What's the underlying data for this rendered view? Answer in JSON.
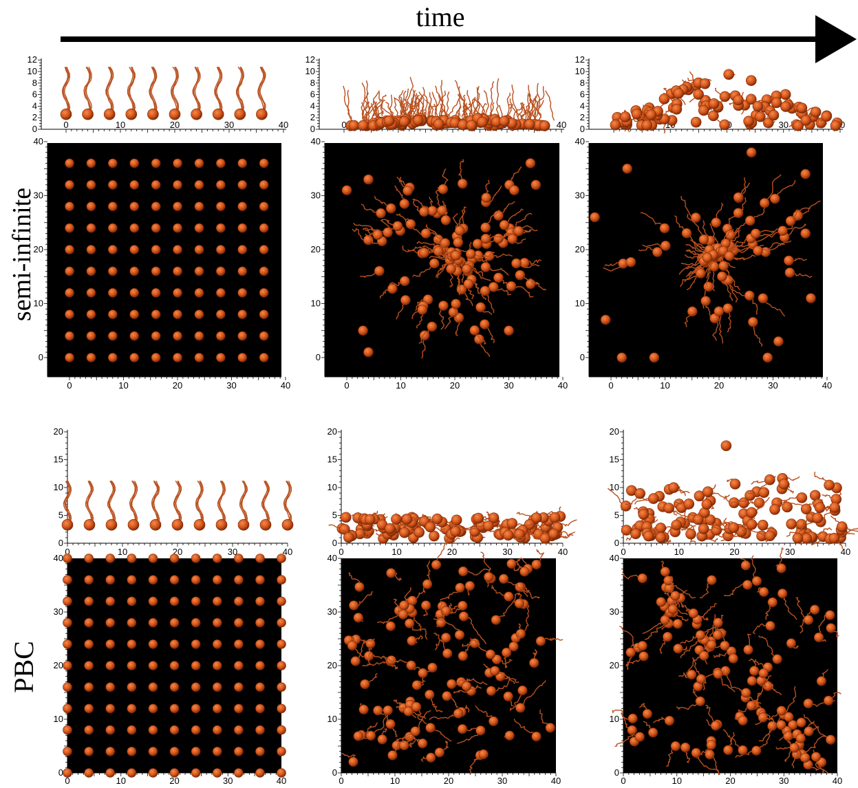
{
  "time_label": "time",
  "row_labels": {
    "top": "semi-infinite",
    "bottom": "PBC"
  },
  "colors": {
    "bead": "#d4541a",
    "bead_dark": "#7a2a06",
    "chain": "#b8501e",
    "panel_bg": "#000000"
  },
  "axes": {
    "side_semi": {
      "x_ticks": [
        "0",
        "10",
        "20",
        "30",
        "40"
      ],
      "y_ticks": [
        "0",
        "2",
        "4",
        "6",
        "8",
        "10",
        "12"
      ]
    },
    "side_pbc": {
      "x_ticks": [
        "0",
        "10",
        "20",
        "30",
        "40"
      ],
      "y_ticks": [
        "0",
        "5",
        "10",
        "15",
        "20"
      ]
    },
    "top_view": {
      "x_ticks": [
        "0",
        "10",
        "20",
        "30",
        "40"
      ],
      "y_ticks": [
        "0",
        "10",
        "20",
        "30",
        "40"
      ]
    }
  },
  "panels": [
    {
      "id": "semi-t0-side",
      "row": "semi-infinite",
      "stage": "initial",
      "view": "side"
    },
    {
      "id": "semi-t1-side",
      "row": "semi-infinite",
      "stage": "intermediate",
      "view": "side"
    },
    {
      "id": "semi-t2-side",
      "row": "semi-infinite",
      "stage": "late",
      "view": "side"
    },
    {
      "id": "semi-t0-top",
      "row": "semi-infinite",
      "stage": "initial",
      "view": "top"
    },
    {
      "id": "semi-t1-top",
      "row": "semi-infinite",
      "stage": "intermediate",
      "view": "top"
    },
    {
      "id": "semi-t2-top",
      "row": "semi-infinite",
      "stage": "late",
      "view": "top"
    },
    {
      "id": "pbc-t0-side",
      "row": "PBC",
      "stage": "initial",
      "view": "side"
    },
    {
      "id": "pbc-t1-side",
      "row": "PBC",
      "stage": "intermediate",
      "view": "side"
    },
    {
      "id": "pbc-t2-side",
      "row": "PBC",
      "stage": "late",
      "view": "side"
    },
    {
      "id": "pbc-t0-top",
      "row": "PBC",
      "stage": "initial",
      "view": "top"
    },
    {
      "id": "pbc-t1-top",
      "row": "PBC",
      "stage": "intermediate",
      "view": "top"
    },
    {
      "id": "pbc-t2-top",
      "row": "PBC",
      "stage": "late",
      "view": "top"
    }
  ]
}
